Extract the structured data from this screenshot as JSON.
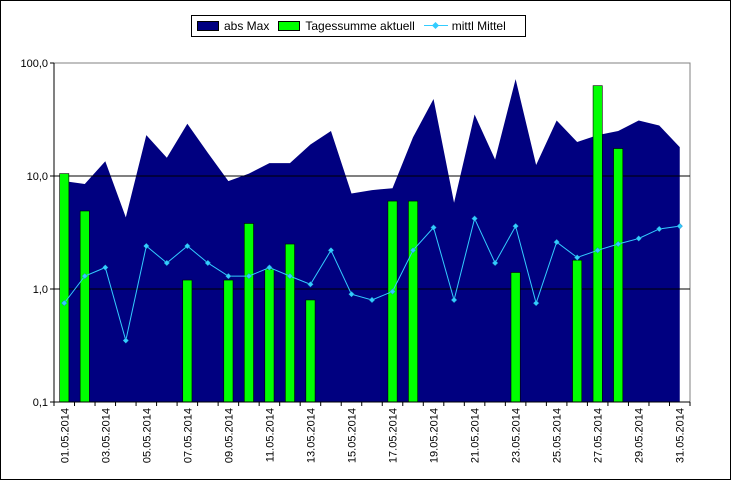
{
  "legend": {
    "area_label": "abs Max",
    "bar_label": "Tagessumme aktuell",
    "line_label": "mittl Mittel"
  },
  "colors": {
    "area": "#000080",
    "bar": "#00ff00",
    "line": "#33ccff",
    "plot_background": "#ffffff"
  },
  "chart_data": {
    "type": "bar",
    "title": "",
    "xlabel": "",
    "ylabel": "",
    "y_scale": "log",
    "ylim": [
      0.1,
      100
    ],
    "yticks": [
      "0,1",
      "1,0",
      "10,0",
      "100,0"
    ],
    "gridlines": "major horizontal at 1,0 and 10,0",
    "legend_position": "top",
    "x": [
      "01.05.2014",
      "02.05.2014",
      "03.05.2014",
      "04.05.2014",
      "05.05.2014",
      "06.05.2014",
      "07.05.2014",
      "08.05.2014",
      "09.05.2014",
      "10.05.2014",
      "11.05.2014",
      "12.05.2014",
      "13.05.2014",
      "14.05.2014",
      "15.05.2014",
      "16.05.2014",
      "17.05.2014",
      "18.05.2014",
      "19.05.2014",
      "20.05.2014",
      "21.05.2014",
      "22.05.2014",
      "23.05.2014",
      "24.05.2014",
      "25.05.2014",
      "26.05.2014",
      "27.05.2014",
      "28.05.2014",
      "29.05.2014",
      "30.05.2014",
      "31.05.2014"
    ],
    "x_tick_labels": [
      "01.05.2014",
      "03.05.2014",
      "05.05.2014",
      "07.05.2014",
      "09.05.2014",
      "11.05.2014",
      "13.05.2014",
      "15.05.2014",
      "17.05.2014",
      "19.05.2014",
      "21.05.2014",
      "23.05.2014",
      "25.05.2014",
      "27.05.2014",
      "29.05.2014",
      "31.05.2014"
    ],
    "series": [
      {
        "name": "abs Max",
        "kind": "area",
        "values": [
          9.0,
          8.5,
          13.5,
          4.3,
          23.0,
          14.5,
          29.0,
          16.0,
          9.0,
          10.5,
          13.0,
          13.0,
          19.0,
          25.0,
          7.0,
          7.5,
          7.8,
          22.0,
          48.0,
          5.8,
          35.0,
          14.0,
          72.0,
          12.5,
          31.0,
          20.0,
          23.0,
          25.0,
          31.0,
          28.0,
          18.0
        ]
      },
      {
        "name": "Tagessumme aktuell",
        "kind": "bar",
        "values": [
          10.5,
          4.9,
          null,
          null,
          null,
          null,
          1.2,
          null,
          1.2,
          3.8,
          1.5,
          2.5,
          0.8,
          null,
          null,
          null,
          6.0,
          6.0,
          null,
          null,
          null,
          null,
          1.4,
          null,
          null,
          1.8,
          63.0,
          17.5,
          null,
          null,
          null
        ]
      },
      {
        "name": "mittl Mittel",
        "kind": "line",
        "values": [
          0.75,
          1.3,
          1.55,
          0.35,
          2.4,
          1.7,
          2.4,
          1.7,
          1.3,
          1.3,
          1.55,
          1.3,
          1.1,
          2.2,
          0.9,
          0.8,
          0.95,
          2.2,
          3.5,
          0.8,
          4.2,
          1.7,
          3.6,
          0.75,
          2.6,
          1.9,
          2.2,
          2.5,
          2.8,
          3.4,
          3.6
        ]
      }
    ]
  }
}
